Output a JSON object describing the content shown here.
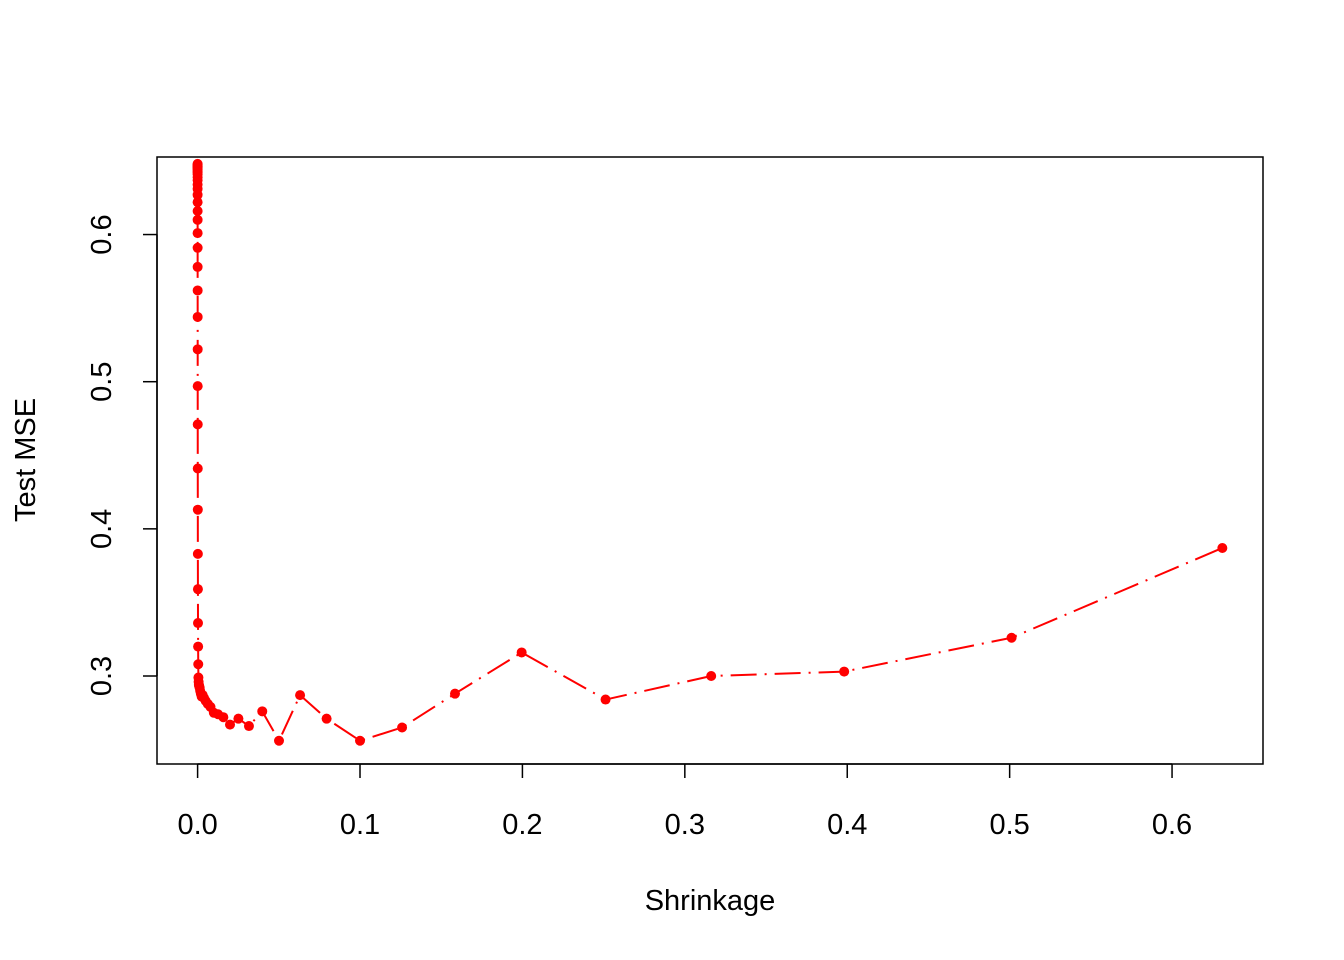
{
  "chart_data": {
    "type": "line",
    "title": "",
    "xlabel": "Shrinkage",
    "ylabel": "Test MSE",
    "xlim": [
      -0.025,
      0.656
    ],
    "ylim": [
      0.2402,
      0.6527
    ],
    "x_ticks": [
      0.0,
      0.1,
      0.2,
      0.3,
      0.4,
      0.5,
      0.6
    ],
    "x_tick_labels": [
      "0.0",
      "0.1",
      "0.2",
      "0.3",
      "0.4",
      "0.5",
      "0.6"
    ],
    "y_ticks": [
      0.3,
      0.4,
      0.5,
      0.6
    ],
    "y_tick_labels": [
      "0.3",
      "0.4",
      "0.5",
      "0.6"
    ],
    "grid": false,
    "series": [
      {
        "color": "#ff0000",
        "line_style": "dashdot",
        "marker": "filled-circle",
        "x": [
          0.0,
          0.0,
          0.0,
          0.0,
          0.0,
          0.0,
          0.0,
          0.0,
          0.0,
          0.0,
          0.0,
          0.0,
          0.0,
          0.0,
          0.0,
          0.0,
          0.0,
          1e-05,
          1e-05,
          1e-05,
          2e-05,
          2e-05,
          3e-05,
          4e-05,
          5e-05,
          6e-05,
          8e-05,
          0.0001,
          0.00013,
          0.00016,
          0.0002,
          0.00025,
          0.00032,
          0.0004,
          0.0005,
          0.00063,
          0.00079,
          0.001,
          0.00126,
          0.00158,
          0.002,
          0.00251,
          0.00316,
          0.00398,
          0.00501,
          0.00631,
          0.00794,
          0.01,
          0.01259,
          0.01585,
          0.01995,
          0.02512,
          0.03162,
          0.03981,
          0.05012,
          0.0631,
          0.07943,
          0.1,
          0.12589,
          0.15849,
          0.19953,
          0.25119,
          0.31623,
          0.39811,
          0.50119,
          0.63096
        ],
        "y": [
          0.648,
          0.6475,
          0.647,
          0.6465,
          0.646,
          0.6455,
          0.645,
          0.644,
          0.643,
          0.642,
          0.641,
          0.639,
          0.637,
          0.634,
          0.631,
          0.627,
          0.622,
          0.616,
          0.61,
          0.601,
          0.591,
          0.578,
          0.562,
          0.544,
          0.522,
          0.497,
          0.471,
          0.441,
          0.413,
          0.383,
          0.359,
          0.336,
          0.32,
          0.308,
          0.299,
          0.296,
          0.294,
          0.293,
          0.292,
          0.29,
          0.288,
          0.286,
          0.287,
          0.285,
          0.283,
          0.281,
          0.279,
          0.275,
          0.274,
          0.272,
          0.267,
          0.271,
          0.266,
          0.276,
          0.256,
          0.287,
          0.271,
          0.256,
          0.265,
          0.288,
          0.316,
          0.284,
          0.3,
          0.303,
          0.326,
          0.387
        ]
      }
    ]
  }
}
